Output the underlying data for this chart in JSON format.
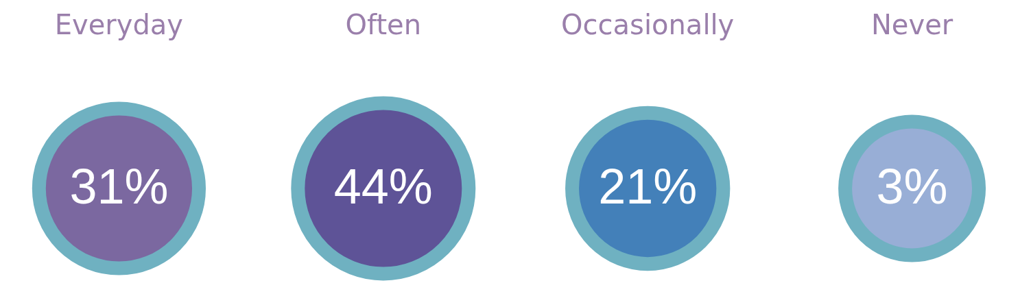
{
  "chart_data": {
    "type": "other",
    "categories": [
      "Everyday",
      "Often",
      "Occasionally",
      "Never"
    ],
    "values": [
      31,
      44,
      21,
      3
    ],
    "value_labels": [
      "31%",
      "44%",
      "21%",
      "3%"
    ],
    "colors": [
      "#7b68a0",
      "#5e5397",
      "#4380b9",
      "#98aed6"
    ]
  }
}
